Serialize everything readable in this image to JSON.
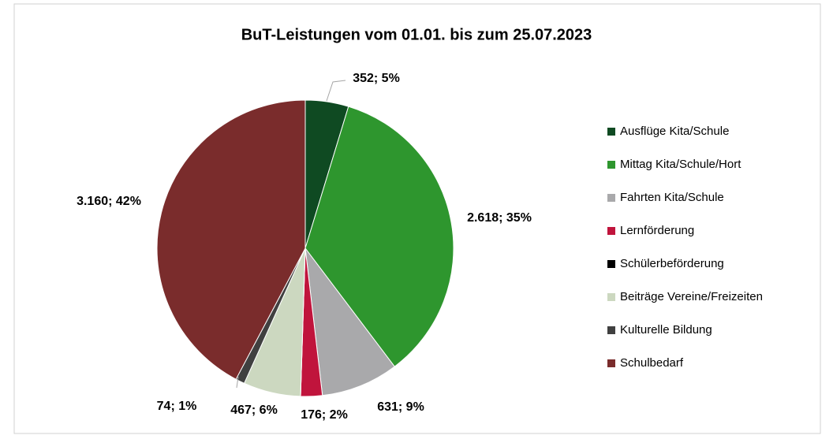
{
  "chart_data": {
    "type": "pie",
    "title": "BuT-Leistungen vom 01.01. bis zum 25.07.2023",
    "categories": [
      "Ausflüge Kita/Schule",
      "Mittag Kita/Schule/Hort",
      "Fahrten Kita/Schule",
      "Lernförderung",
      "Schülerbeförderung",
      "Beiträge Vereine/Freizeiten",
      "Kulturelle Bildung",
      "Schulbedarf"
    ],
    "values": [
      352,
      2618,
      631,
      176,
      0,
      467,
      74,
      3160
    ],
    "value_labels": [
      "352; 5%",
      "2.618; 35%",
      "631; 9%",
      "176; 2%",
      null,
      "467; 6%",
      "74; 1%",
      "3.160; 42%"
    ],
    "colors": [
      "#0f4a22",
      "#2e962e",
      "#a9a9ab",
      "#c0143c",
      "#000000",
      "#ccd8c0",
      "#404040",
      "#7a2c2c"
    ],
    "legend": "right"
  }
}
